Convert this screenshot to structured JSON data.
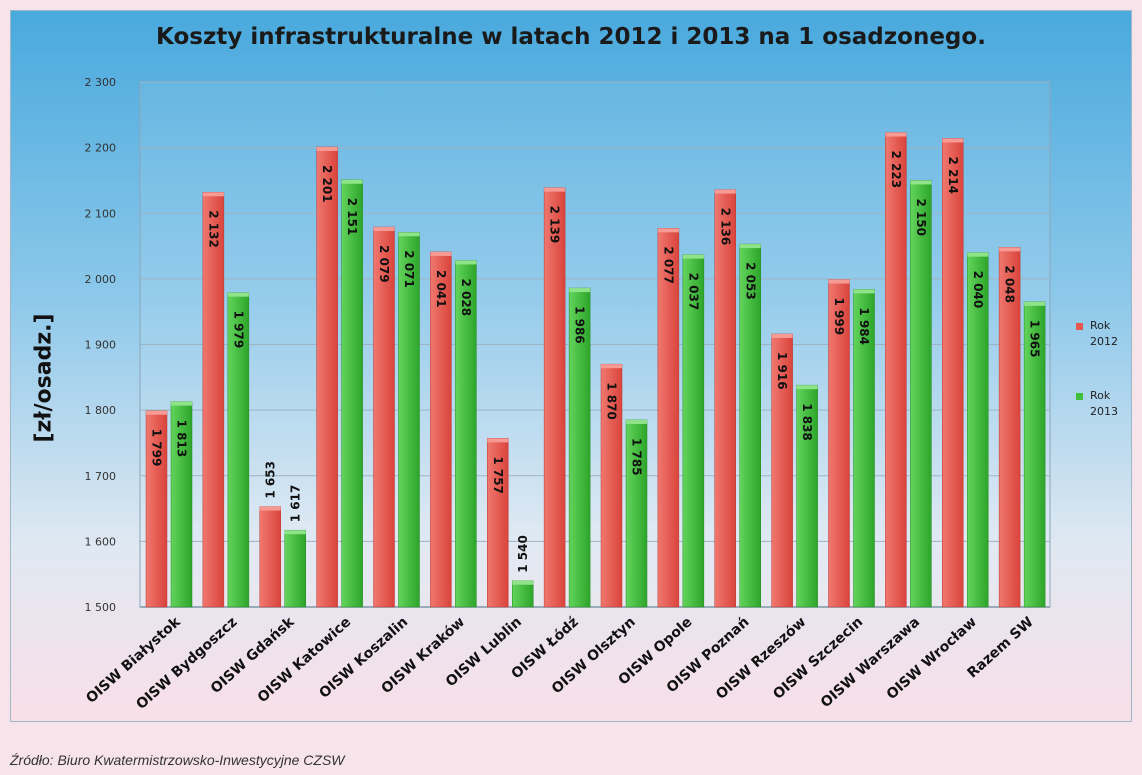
{
  "chart_data": {
    "type": "bar",
    "title": "Koszty infrastrukturalne w latach 2012 i 2013 na 1 osadzonego.",
    "ylabel": "[zł/osadz.]",
    "xlabel": "",
    "ylim": [
      1500,
      2300
    ],
    "yticks": [
      "1 500",
      "1 600",
      "1 700",
      "1 800",
      "1 900",
      "2 000",
      "2 100",
      "2 200",
      "2 300"
    ],
    "grid": true,
    "legend_position": "right",
    "categories": [
      "OISW Białystok",
      "OISW Bydgoszcz",
      "OISW Gdańsk",
      "OISW Katowice",
      "OISW Koszalin",
      "OISW Kraków",
      "OISW Lublin",
      "OISW Łódź",
      "OISW Olsztyn",
      "OISW Opole",
      "OISW Poznań",
      "OISW Rzeszów",
      "OISW Szczecin",
      "OISW Warszawa",
      "OISW Wrocław",
      "Razem SW"
    ],
    "series": [
      {
        "name": "Rok 2012",
        "color": "#e8574f",
        "values": [
          1799,
          2132,
          1653,
          2201,
          2079,
          2041,
          1757,
          2139,
          1870,
          2077,
          2136,
          1916,
          1999,
          2223,
          2214,
          2048
        ],
        "labels": [
          "1 799",
          "2 132",
          "1 653",
          "2 201",
          "2 079",
          "2 041",
          "1 757",
          "2 139",
          "1 870",
          "2 077",
          "2 136",
          "1 916",
          "1 999",
          "2 223",
          "2 214",
          "2 048"
        ]
      },
      {
        "name": "Rok 2013",
        "color": "#3fbf3a",
        "values": [
          1813,
          1979,
          1617,
          2151,
          2071,
          2028,
          1540,
          1986,
          1785,
          2037,
          2053,
          1838,
          1984,
          2150,
          2040,
          1965
        ],
        "labels": [
          "1 813",
          "1 979",
          "1 617",
          "2 151",
          "2 071",
          "2 028",
          "1 540",
          "1 986",
          "1 785",
          "2 037",
          "2 053",
          "1 838",
          "1 984",
          "2 150",
          "2 040",
          "1 965"
        ]
      }
    ]
  },
  "source_note": "Źródło: Biuro Kwatermistrzowsko-Inwestycyjne CZSW"
}
